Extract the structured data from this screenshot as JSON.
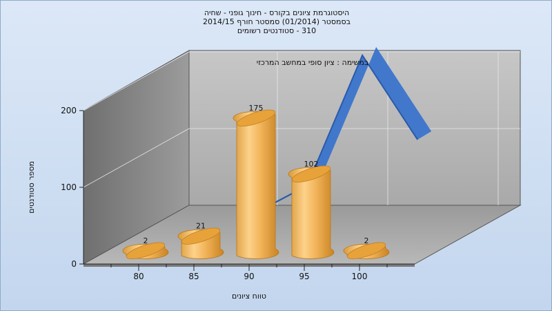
{
  "chart_data": {
    "type": "bar",
    "title": [
      "היסטוגרמת ציונים בקורס - חינוך גופני - שחיה",
      "בסמסטר  (01/2014)  סמסטר חורף 2014/15",
      "310 - סטודנטים רשומים"
    ],
    "subtitle": "במשימה : ציון סופי במחשב המרכזי",
    "xlabel": "טווח ציונים",
    "ylabel": "מספר סטודנטים",
    "x_ticks": [
      "80",
      "85",
      "90",
      "95",
      "100"
    ],
    "y_ticks": [
      "0",
      "100",
      "200"
    ],
    "ylim": [
      0,
      200
    ],
    "series": [
      {
        "type": "bar",
        "x": [
          80,
          85,
          90,
          95,
          100
        ],
        "values": [
          2,
          21,
          175,
          102,
          2
        ],
        "labels": [
          "2",
          "21",
          "175",
          "102",
          "2"
        ]
      },
      {
        "type": "line",
        "x": [
          85,
          90,
          95,
          100
        ],
        "values": [
          22,
          60,
          230,
          120
        ]
      }
    ],
    "colors": {
      "bar": "#f0b050",
      "line": "#3a74cc"
    },
    "grid": true
  }
}
